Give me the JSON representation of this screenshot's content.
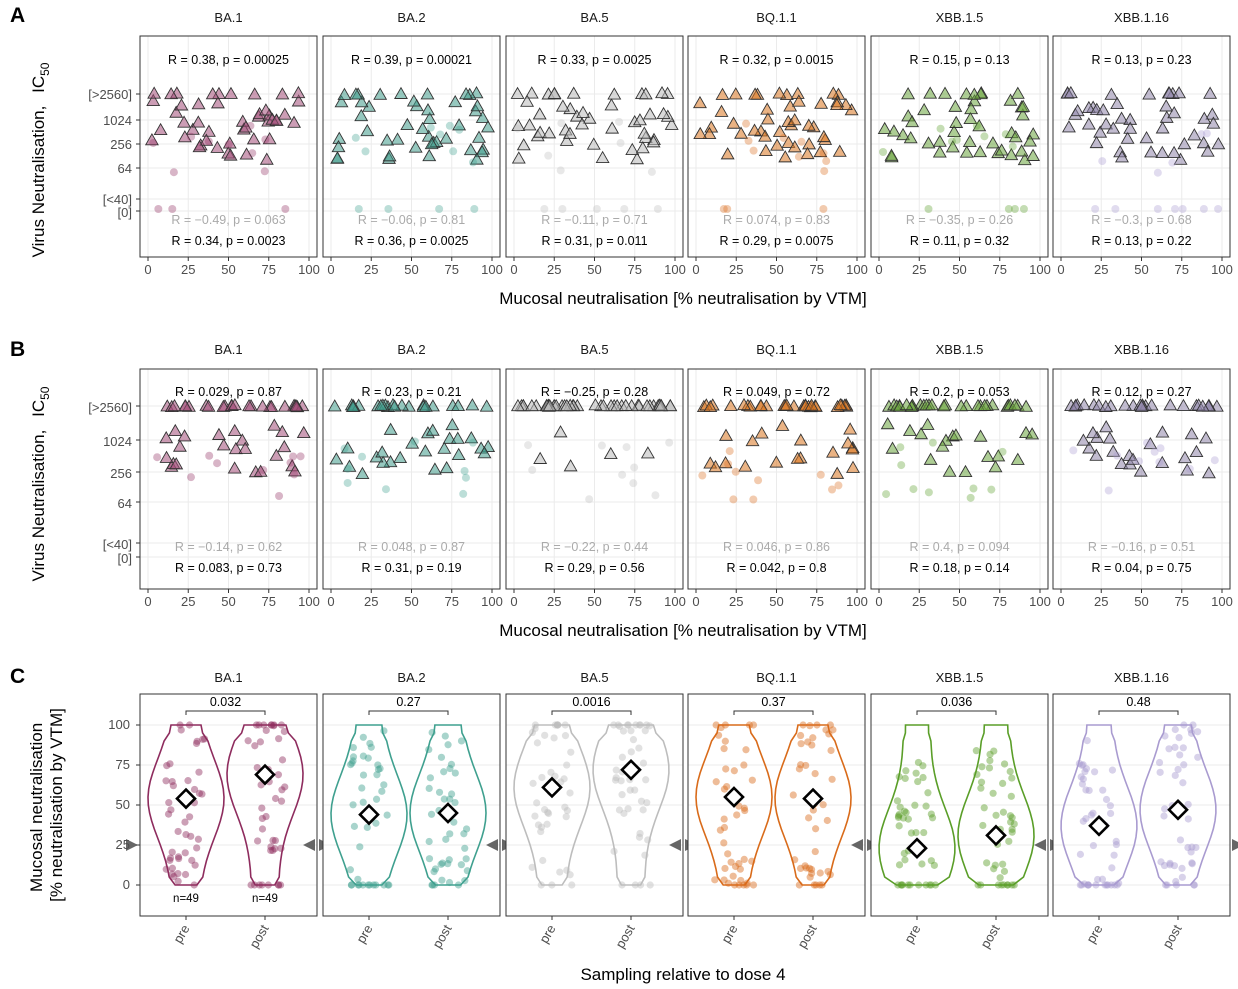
{
  "variants": [
    "BA.1",
    "BA.2",
    "BA.5",
    "BQ.1.1",
    "XBB.1.5",
    "XBB.1.16"
  ],
  "colors": {
    "BA.1": "#8e2c5e",
    "BA.2": "#3fa08f",
    "BA.5": "#bdbdbd",
    "BQ.1.1": "#d96b1a",
    "XBB.1.5": "#5a9e28",
    "XBB.1.16": "#a99bd0",
    "tri_fill": {
      "BA.1": "#a24d79",
      "BA.2": "#3f9a8a",
      "BA.5": "#b9b9b9",
      "BQ.1.1": "#d8751f",
      "XBB.1.5": "#6aa43c",
      "XBB.1.16": "#8f85a9"
    },
    "stat_top": "#000000",
    "stat_faded": "#a8a8a8"
  },
  "panel_letters": [
    "A",
    "B",
    "C"
  ],
  "panelA": {
    "ylabel": "Virus Neutralisation,",
    "ylabel_sub": "IC",
    "ylabel_subscript": "50",
    "xlabel": "Mucosal neutralisation [% neutralisation by VTM]",
    "yticks": [
      "[>2560]",
      "1024",
      "256",
      "64",
      "[<40]",
      "[0]"
    ],
    "xticks": [
      "0",
      "25",
      "50",
      "75",
      "100"
    ],
    "stats_top": [
      "R = 0.38, p = 0.00025",
      "R = 0.39, p = 0.00021",
      "R = 0.33, p = 0.0025",
      "R = 0.32, p = 0.0015",
      "R = 0.15, p = 0.13",
      "R = 0.13, p = 0.23"
    ],
    "stats_faded": [
      "R = −0.49, p = 0.063",
      "R = −0.06, p = 0.81",
      "R = −0.11, p = 0.71",
      "R = 0.074, p = 0.83",
      "R = −0.35, p = 0.26",
      "R = −0.3, p = 0.68"
    ],
    "stats_bottom": [
      "R = 0.34, p = 0.0023",
      "R = 0.36, p = 0.0025",
      "R = 0.31, p = 0.011",
      "R = 0.29, p = 0.0075",
      "R = 0.11, p = 0.32",
      "R = 0.13, p = 0.22"
    ]
  },
  "panelB": {
    "ylabel": "Virus Neutralisation,",
    "ylabel_sub": "IC",
    "ylabel_subscript": "50",
    "xlabel": "Mucosal neutralisation [% neutralisation by VTM]",
    "yticks": [
      "[>2560]",
      "1024",
      "256",
      "64",
      "[<40]",
      "[0]"
    ],
    "xticks": [
      "0",
      "25",
      "50",
      "75",
      "100"
    ],
    "stats_top": [
      "R = 0.029, p = 0.87",
      "R = 0.23, p = 0.21",
      "R = −0.25, p = 0.28",
      "R = 0.049, p = 0.72",
      "R = 0.2, p = 0.053",
      "R = 0.12, p = 0.27"
    ],
    "stats_faded": [
      "R = −0.14, p = 0.62",
      "R = 0.048, p = 0.87",
      "R = −0.22, p = 0.44",
      "R = 0.046, p = 0.86",
      "R = 0.4, p = 0.094",
      "R = −0.16, p = 0.51"
    ],
    "stats_bottom": [
      "R = 0.083, p = 0.73",
      "R = 0.31, p = 0.19",
      "R = 0.29, p = 0.56",
      "R = 0.042, p = 0.8",
      "R = 0.18, p = 0.14",
      "R = 0.04, p = 0.75"
    ]
  },
  "panelC": {
    "ylabel_line1": "Mucosal neutralisation",
    "ylabel_line2": "[% neutralisation by VTM]",
    "xlabel": "Sampling relative to dose 4",
    "yticks": [
      "100",
      "75",
      "50",
      "25",
      "0"
    ],
    "groups": [
      "pre",
      "post"
    ],
    "pvalues": [
      "0.032",
      "0.27",
      "0.0016",
      "0.37",
      "0.036",
      "0.48"
    ],
    "n_labels": [
      "n=49",
      "n=49"
    ]
  },
  "chart_data": [
    {
      "type": "scatter",
      "panel": "A",
      "facets": [
        "BA.1",
        "BA.2",
        "BA.5",
        "BQ.1.1",
        "XBB.1.5",
        "XBB.1.16"
      ],
      "x_label": "Mucosal neutralisation [% neutralisation by VTM]",
      "y_label": "Virus Neutralisation, IC50",
      "y_scale": "log2 with censored categories [<40], [0] and [>2560]",
      "xlim": [
        0,
        100
      ],
      "correlations": {
        "top": [
          [
            0.38,
            0.00025
          ],
          [
            0.39,
            0.00021
          ],
          [
            0.33,
            0.0025
          ],
          [
            0.32,
            0.0015
          ],
          [
            0.15,
            0.13
          ],
          [
            0.13,
            0.23
          ]
        ],
        "faded": [
          [
            -0.49,
            0.063
          ],
          [
            -0.06,
            0.81
          ],
          [
            -0.11,
            0.71
          ],
          [
            0.074,
            0.83
          ],
          [
            -0.35,
            0.26
          ],
          [
            -0.3,
            0.68
          ]
        ],
        "bottom": [
          [
            0.34,
            0.0023
          ],
          [
            0.36,
            0.0025
          ],
          [
            0.31,
            0.011
          ],
          [
            0.29,
            0.0075
          ],
          [
            0.11,
            0.32
          ],
          [
            0.13,
            0.22
          ]
        ]
      }
    },
    {
      "type": "scatter",
      "panel": "B",
      "facets": [
        "BA.1",
        "BA.2",
        "BA.5",
        "BQ.1.1",
        "XBB.1.5",
        "XBB.1.16"
      ],
      "x_label": "Mucosal neutralisation [% neutralisation by VTM]",
      "y_label": "Virus Neutralisation, IC50",
      "xlim": [
        0,
        100
      ],
      "correlations": {
        "top": [
          [
            0.029,
            0.87
          ],
          [
            0.23,
            0.21
          ],
          [
            -0.25,
            0.28
          ],
          [
            0.049,
            0.72
          ],
          [
            0.2,
            0.053
          ],
          [
            0.12,
            0.27
          ]
        ],
        "faded": [
          [
            -0.14,
            0.62
          ],
          [
            0.048,
            0.87
          ],
          [
            -0.22,
            0.44
          ],
          [
            0.046,
            0.86
          ],
          [
            0.4,
            0.094
          ],
          [
            -0.16,
            0.51
          ]
        ],
        "bottom": [
          [
            0.083,
            0.73
          ],
          [
            0.31,
            0.19
          ],
          [
            0.29,
            0.56
          ],
          [
            0.042,
            0.8
          ],
          [
            0.18,
            0.14
          ],
          [
            0.04,
            0.75
          ]
        ]
      }
    },
    {
      "type": "violin",
      "panel": "C",
      "facets": [
        "BA.1",
        "BA.2",
        "BA.5",
        "BQ.1.1",
        "XBB.1.5",
        "XBB.1.16"
      ],
      "categories": [
        "pre",
        "post"
      ],
      "x_label": "Sampling relative to dose 4",
      "y_label": "Mucosal neutralisation [% neutralisation by VTM]",
      "ylim": [
        0,
        100
      ],
      "means": {
        "BA.1": [
          54,
          69
        ],
        "BA.2": [
          44,
          45
        ],
        "BA.5": [
          61,
          72
        ],
        "BQ.1.1": [
          55,
          54
        ],
        "XBB.1.5": [
          23,
          31
        ],
        "XBB.1.16": [
          37,
          47
        ]
      },
      "pvalues": [
        0.032,
        0.27,
        0.0016,
        0.37,
        0.036,
        0.48
      ],
      "threshold_marker": 25,
      "n": [
        49,
        49
      ]
    }
  ]
}
